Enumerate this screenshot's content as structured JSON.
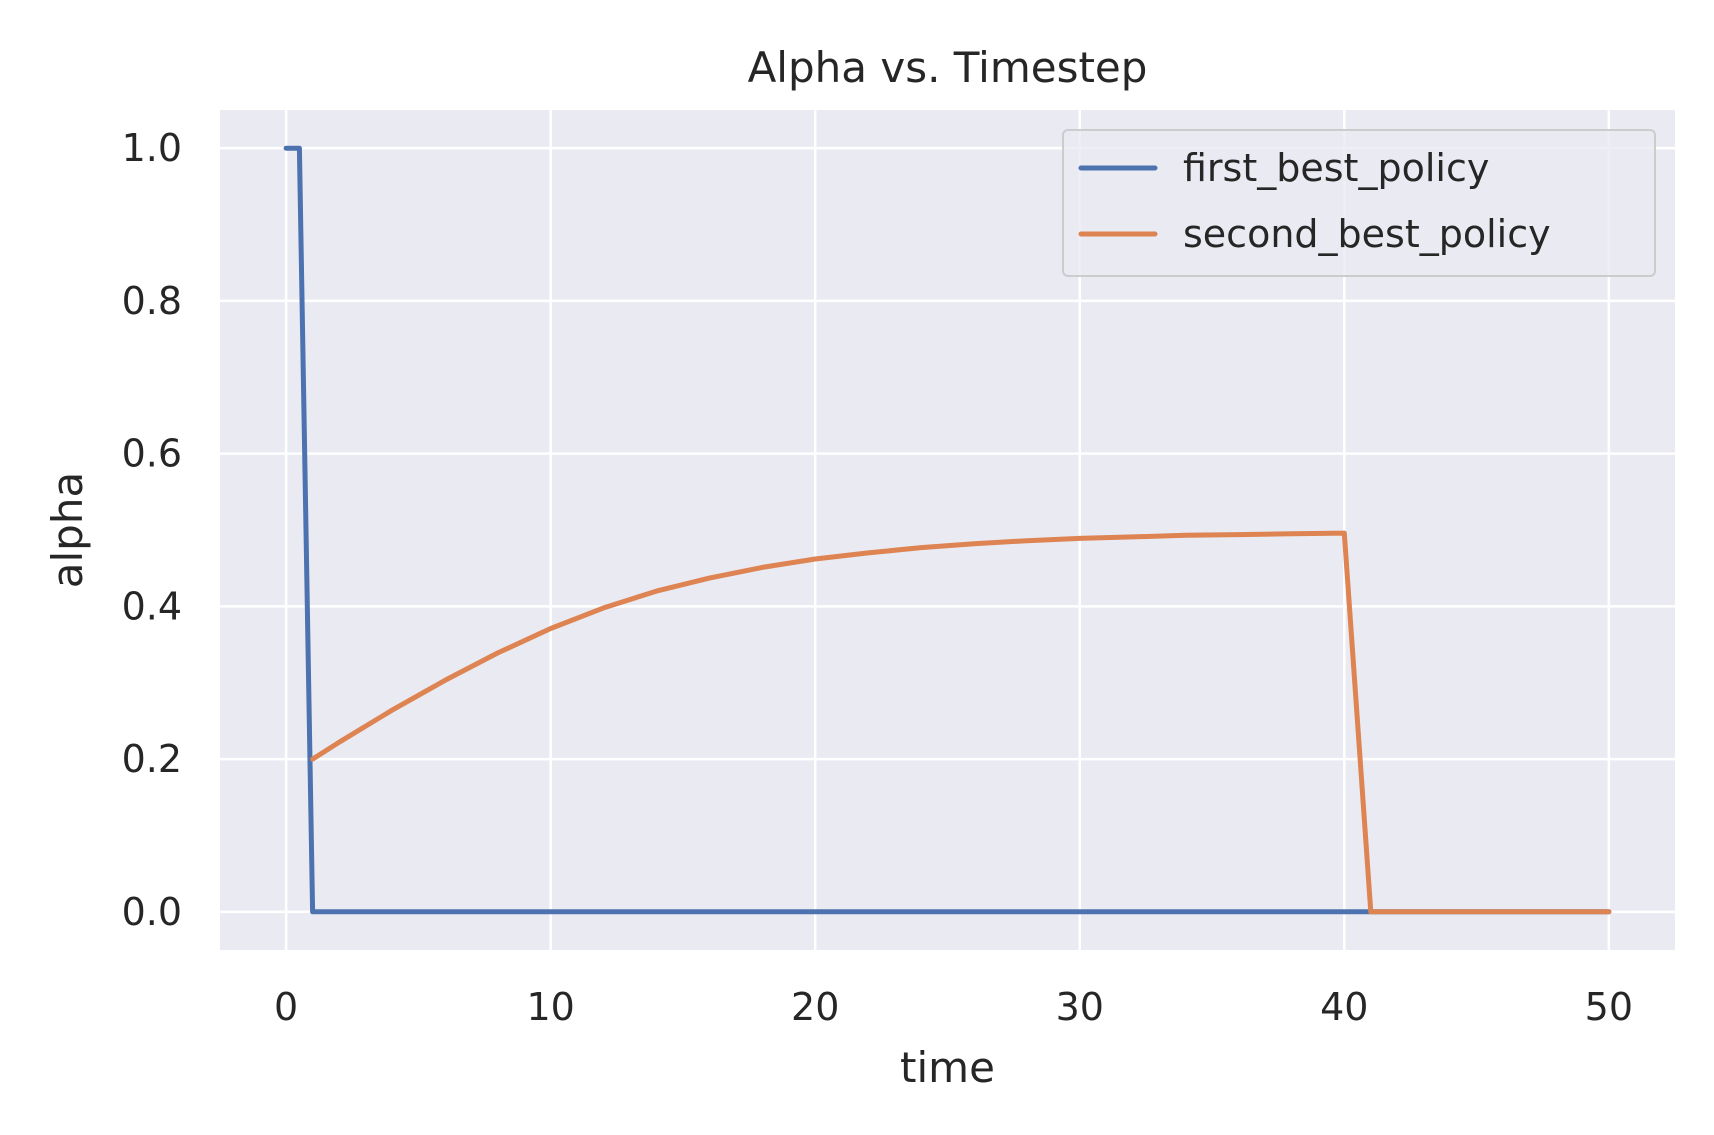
{
  "chart_data": {
    "type": "line",
    "title": "Alpha vs. Timestep",
    "xlabel": "time",
    "ylabel": "alpha",
    "xlim": [
      -2.5,
      52.5
    ],
    "ylim": [
      -0.05,
      1.05
    ],
    "xticks": [
      0,
      10,
      20,
      30,
      40,
      50
    ],
    "yticks": [
      0.0,
      0.2,
      0.4,
      0.6,
      0.8,
      1.0
    ],
    "xtick_labels": [
      "0",
      "10",
      "20",
      "30",
      "40",
      "50"
    ],
    "ytick_labels": [
      "0.0",
      "0.2",
      "0.4",
      "0.6",
      "0.8",
      "1.0"
    ],
    "grid": true,
    "legend_position": "top-right",
    "series": [
      {
        "name": "first_best_policy",
        "color": "#4c72b0",
        "x": [
          0,
          0.5,
          1,
          2,
          5,
          10,
          20,
          30,
          40,
          41,
          50
        ],
        "y": [
          1.0,
          1.0,
          0.0,
          0.0,
          0.0,
          0.0,
          0.0,
          0.0,
          0.0,
          0.0,
          0.0
        ]
      },
      {
        "name": "second_best_policy",
        "color": "#dd8452",
        "x": [
          1,
          2,
          4,
          6,
          8,
          10,
          12,
          14,
          16,
          18,
          20,
          22,
          24,
          26,
          28,
          30,
          32,
          34,
          36,
          38,
          40,
          41,
          50
        ],
        "y": [
          0.2,
          0.222,
          0.264,
          0.303,
          0.339,
          0.371,
          0.398,
          0.42,
          0.437,
          0.451,
          0.462,
          0.47,
          0.477,
          0.482,
          0.486,
          0.489,
          0.491,
          0.493,
          0.494,
          0.495,
          0.496,
          0.0,
          0.0
        ]
      }
    ]
  }
}
